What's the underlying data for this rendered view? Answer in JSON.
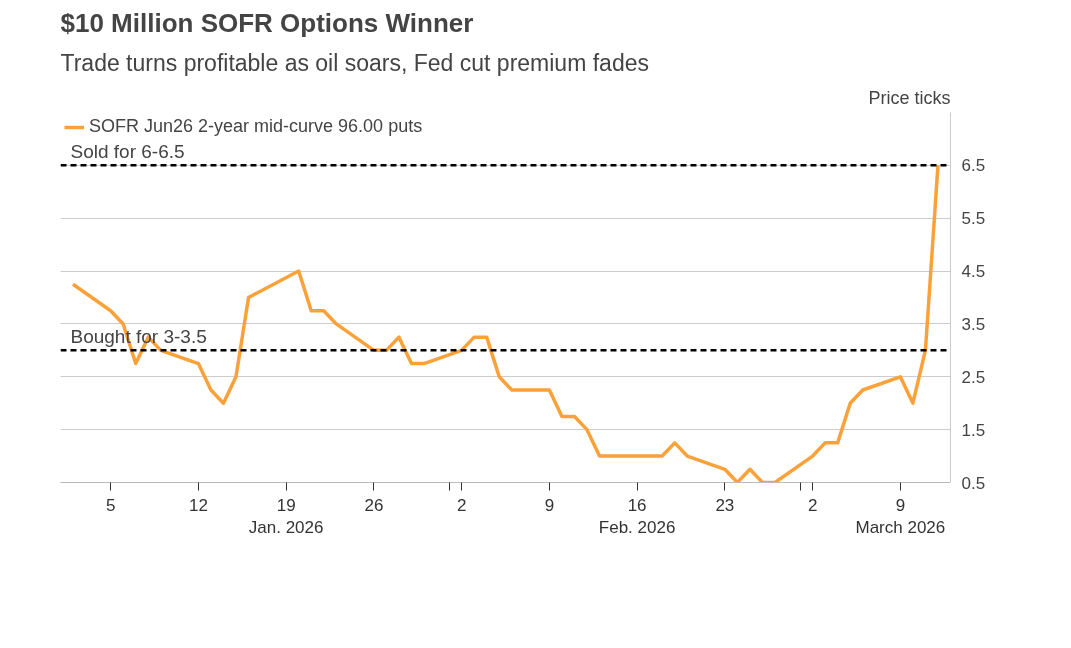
{
  "chart_data": {
    "type": "line",
    "title": "$10 Million SOFR Options Winner",
    "subtitle": "Trade turns profitable as oil soars, Fed cut premium fades",
    "ylabel": "Price ticks",
    "x": [
      "2026-01-02",
      "2026-01-05",
      "2026-01-06",
      "2026-01-07",
      "2026-01-08",
      "2026-01-09",
      "2026-01-12",
      "2026-01-13",
      "2026-01-14",
      "2026-01-15",
      "2026-01-16",
      "2026-01-20",
      "2026-01-21",
      "2026-01-22",
      "2026-01-23",
      "2026-01-26",
      "2026-01-27",
      "2026-01-28",
      "2026-01-29",
      "2026-01-30",
      "2026-02-02",
      "2026-02-03",
      "2026-02-04",
      "2026-02-05",
      "2026-02-06",
      "2026-02-09",
      "2026-02-10",
      "2026-02-11",
      "2026-02-12",
      "2026-02-13",
      "2026-02-18",
      "2026-02-19",
      "2026-02-20",
      "2026-02-23",
      "2026-02-24",
      "2026-02-25",
      "2026-02-26",
      "2026-02-27",
      "2026-03-02",
      "2026-03-03",
      "2026-03-04",
      "2026-03-05",
      "2026-03-06",
      "2026-03-09",
      "2026-03-10",
      "2026-03-11",
      "2026-03-12"
    ],
    "series": [
      {
        "name": "SOFR Jun26 2-year mid-curve 96.00 puts",
        "color": "#fba13a",
        "values": [
          4.25,
          3.75,
          3.5,
          2.75,
          3.25,
          3.0,
          2.75,
          2.25,
          2.0,
          2.5,
          4.0,
          4.5,
          3.75,
          3.75,
          3.5,
          3.0,
          3.0,
          3.25,
          2.75,
          2.75,
          3.0,
          3.25,
          3.25,
          2.5,
          2.25,
          2.25,
          1.75,
          1.75,
          1.5,
          1.0,
          1.0,
          1.25,
          1.0,
          0.75,
          0.5,
          0.75,
          0.5,
          0.5,
          1.0,
          1.25,
          1.25,
          2.0,
          2.25,
          2.5,
          2.0,
          3.0,
          6.5
        ]
      }
    ],
    "xlim": [
      "2026-01-01",
      "2026-03-13"
    ],
    "xticks": [
      {
        "value": "2026-01-05",
        "label": "5"
      },
      {
        "value": "2026-01-12",
        "label": "12"
      },
      {
        "value": "2026-01-19",
        "label": "19\nJan. 2026"
      },
      {
        "value": "2026-01-26",
        "label": "26"
      },
      {
        "value": "2026-02-01",
        "label": null
      },
      {
        "value": "2026-02-02",
        "label": "2"
      },
      {
        "value": "2026-02-09",
        "label": "9"
      },
      {
        "value": "2026-02-16",
        "label": "16\nFeb. 2026"
      },
      {
        "value": "2026-02-23",
        "label": "23"
      },
      {
        "value": "2026-03-01",
        "label": null
      },
      {
        "value": "2026-03-02",
        "label": "2"
      },
      {
        "value": "2026-03-09",
        "label": "9\nMarch 2026"
      }
    ],
    "ylim": [
      0.5,
      7.5
    ],
    "yticks": [
      0.5,
      1.5,
      2.5,
      3.5,
      4.5,
      5.5,
      6.5
    ],
    "ref_lines": [
      {
        "axis": "y",
        "value": 6.5,
        "label": "Sold for 6-6.5",
        "color": "#000000",
        "line_style": "dashed"
      },
      {
        "axis": "y",
        "value": 3.0,
        "label": "Bought for 3-3.5",
        "color": "#000000",
        "line_style": "dashed"
      }
    ],
    "grid": "y",
    "legend": "top left",
    "marker": "none",
    "line_style": "solid"
  }
}
